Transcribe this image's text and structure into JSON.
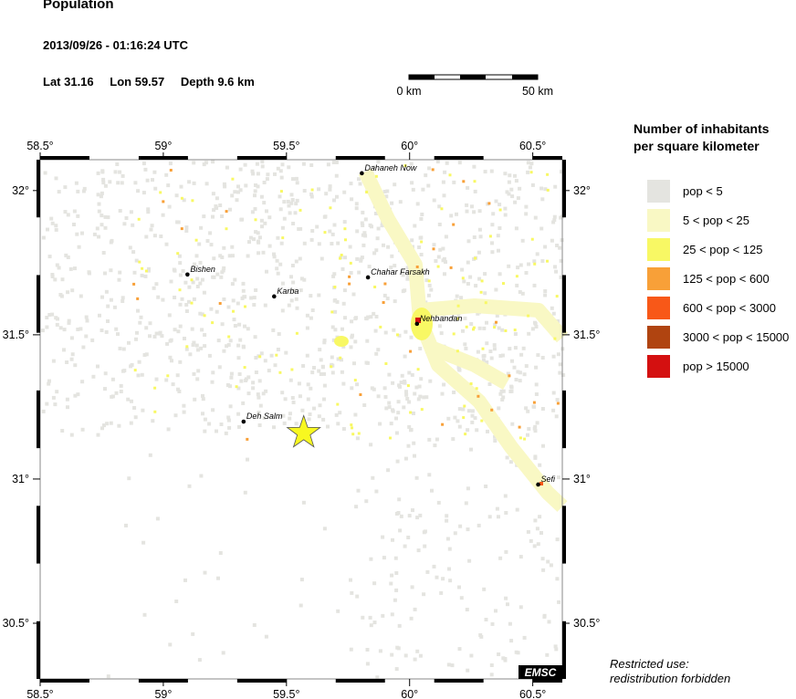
{
  "header": {
    "title": "Population",
    "datetime": "2013/09/26 - 01:16:24 UTC",
    "lat_label": "Lat 31.16",
    "lon_label": "Lon  59.57",
    "depth_label": "Depth  9.6 km"
  },
  "scale_bar": {
    "start": "0 km",
    "end": "50 km"
  },
  "map": {
    "lon_range": [
      58.5,
      60.62
    ],
    "lat_range": [
      30.307,
      32.107
    ],
    "lon_ticks": [
      "58.5°",
      "59°",
      "59.5°",
      "60°",
      "60.5°"
    ],
    "lon_tick_values": [
      58.5,
      59,
      59.5,
      60,
      60.5
    ],
    "lat_ticks": [
      "32°",
      "31.5°",
      "31°",
      "30.5°"
    ],
    "lat_tick_values": [
      32,
      31.5,
      31,
      30.5
    ],
    "epicenter": {
      "lon": 59.57,
      "lat": 31.16,
      "color": "#f8f820"
    },
    "cities": [
      {
        "name": "Dahaneh Now",
        "lon": 59.806,
        "lat": 32.06
      },
      {
        "name": "Bishen",
        "lon": 59.098,
        "lat": 31.709
      },
      {
        "name": "Chahar Farsakh",
        "lon": 59.831,
        "lat": 31.699
      },
      {
        "name": "Karba",
        "lon": 59.45,
        "lat": 31.633
      },
      {
        "name": "Nehbandan",
        "lon": 60.03,
        "lat": 31.538
      },
      {
        "name": "Deh Salm",
        "lon": 59.326,
        "lat": 31.199
      },
      {
        "name": "Sefi",
        "lon": 60.522,
        "lat": 30.981
      }
    ],
    "logo": "EMSC"
  },
  "legend": {
    "title_line1": "Number of inhabitants",
    "title_line2": "per square kilometer",
    "items": [
      {
        "label": "pop < 5",
        "color": "#e4e4e0"
      },
      {
        "label": "5 < pop < 25",
        "color": "#f9f8c4"
      },
      {
        "label": "25 < pop < 125",
        "color": "#f8f864"
      },
      {
        "label": "125 < pop < 600",
        "color": "#f8a038"
      },
      {
        "label": "600 < pop < 3000",
        "color": "#f85818"
      },
      {
        "label": "3000 < pop < 15000",
        "color": "#b04410"
      },
      {
        "label": "pop > 15000",
        "color": "#d41010"
      }
    ]
  },
  "footer": {
    "line1": "Restricted use:",
    "line2": "redistribution forbidden"
  }
}
